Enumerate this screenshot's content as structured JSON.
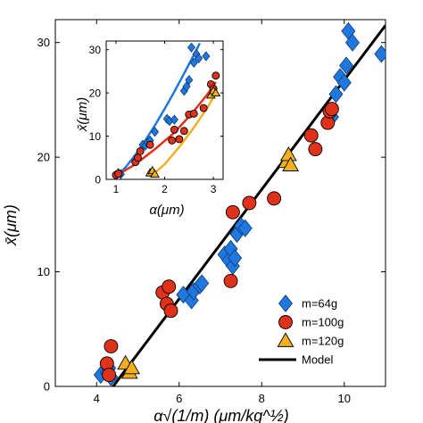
{
  "chart_data": [
    {
      "type": "scatter",
      "xlabel": "α√(1/m)  (μm/kg^½)",
      "ylabel": "x̄(μm)",
      "xlim": [
        3.0,
        11.0
      ],
      "ylim": [
        0,
        32
      ],
      "xticks": [
        "4",
        "6",
        "8",
        "10"
      ],
      "xtick_values": [
        4,
        6,
        8,
        10
      ],
      "yticks": [
        "0",
        "10",
        "20",
        "30"
      ],
      "ytick_values": [
        0,
        10,
        20,
        30
      ],
      "grid": false,
      "legend_position": "bottom-right",
      "series": [
        {
          "name": "m=64g",
          "marker": "diamond",
          "color": "#1f77e0",
          "points": [
            [
              4.1,
              1.0
            ],
            [
              4.3,
              1.6
            ],
            [
              4.25,
              1.2
            ],
            [
              4.35,
              0.8
            ],
            [
              6.1,
              8.0
            ],
            [
              6.3,
              7.5
            ],
            [
              6.35,
              8.3
            ],
            [
              6.5,
              8.8
            ],
            [
              6.55,
              9.0
            ],
            [
              7.1,
              11.5
            ],
            [
              7.2,
              11.0
            ],
            [
              7.25,
              12.0
            ],
            [
              7.3,
              10.5
            ],
            [
              7.35,
              11.2
            ],
            [
              7.4,
              13.3
            ],
            [
              7.5,
              14.0
            ],
            [
              7.6,
              13.8
            ],
            [
              9.7,
              23.5
            ],
            [
              9.8,
              25.5
            ],
            [
              9.9,
              27.0
            ],
            [
              10.0,
              26.5
            ],
            [
              10.05,
              28.0
            ],
            [
              10.1,
              31.0
            ],
            [
              10.2,
              30.0
            ],
            [
              10.9,
              29.0
            ]
          ]
        },
        {
          "name": "m=100g",
          "marker": "circle",
          "color": "#e03218",
          "points": [
            [
              4.25,
              2.0
            ],
            [
              4.35,
              3.5
            ],
            [
              4.3,
              1.0
            ],
            [
              5.6,
              8.2
            ],
            [
              5.7,
              7.2
            ],
            [
              5.75,
              8.7
            ],
            [
              5.8,
              6.6
            ],
            [
              7.3,
              15.2
            ],
            [
              7.25,
              9.2
            ],
            [
              7.7,
              16.0
            ],
            [
              8.3,
              16.4
            ],
            [
              9.2,
              21.9
            ],
            [
              9.3,
              20.7
            ],
            [
              9.6,
              23.0
            ],
            [
              9.65,
              24.0
            ],
            [
              9.7,
              24.2
            ]
          ]
        },
        {
          "name": "m=120g",
          "marker": "triangle",
          "color": "#f2b01e",
          "points": [
            [
              4.7,
              2.0
            ],
            [
              4.8,
              1.2
            ],
            [
              4.85,
              1.6
            ],
            [
              8.6,
              19.6
            ],
            [
              8.65,
              20.2
            ],
            [
              8.7,
              19.3
            ]
          ]
        },
        {
          "name": "Model",
          "marker": "line",
          "color": "#000000",
          "points": [
            [
              4.4,
              0
            ],
            [
              11.0,
              31.5
            ]
          ]
        }
      ]
    },
    {
      "type": "scatter",
      "xlabel": "α(μm)",
      "ylabel": "x̄(μm)",
      "xlim": [
        0.8,
        3.2
      ],
      "ylim": [
        0,
        32
      ],
      "xticks": [
        "1",
        "2",
        "3"
      ],
      "xtick_values": [
        1,
        2,
        3
      ],
      "yticks": [
        "0",
        "10",
        "20",
        "30"
      ],
      "ytick_values": [
        0,
        10,
        20,
        30
      ],
      "series": [
        {
          "name": "m=64g",
          "marker": "diamond",
          "color": "#1f77e0",
          "points": [
            [
              1.0,
              1.0
            ],
            [
              1.05,
              1.5
            ],
            [
              1.1,
              1.2
            ],
            [
              1.55,
              8.0
            ],
            [
              1.6,
              7.8
            ],
            [
              1.65,
              8.5
            ],
            [
              1.7,
              9.0
            ],
            [
              1.8,
              11.0
            ],
            [
              2.05,
              14.0
            ],
            [
              2.1,
              13.5
            ],
            [
              2.2,
              13.8
            ],
            [
              2.4,
              20.5
            ],
            [
              2.45,
              21.5
            ],
            [
              2.5,
              23.0
            ],
            [
              2.6,
              27.0
            ],
            [
              2.55,
              30.5
            ],
            [
              2.65,
              29.0
            ],
            [
              2.7,
              28.0
            ],
            [
              2.85,
              28.5
            ]
          ],
          "curve": [
            [
              1.0,
              0.6
            ],
            [
              1.2,
              2.8
            ],
            [
              1.4,
              5.7
            ],
            [
              1.6,
              9.0
            ],
            [
              1.8,
              12.5
            ],
            [
              2.0,
              16.3
            ],
            [
              2.2,
              20.3
            ],
            [
              2.4,
              24.5
            ],
            [
              2.6,
              28.8
            ],
            [
              2.72,
              31.5
            ]
          ]
        },
        {
          "name": "m=100g",
          "marker": "circle",
          "color": "#e03218",
          "points": [
            [
              1.0,
              1.0
            ],
            [
              1.05,
              1.3
            ],
            [
              1.4,
              4.0
            ],
            [
              1.45,
              5.0
            ],
            [
              1.5,
              6.5
            ],
            [
              1.7,
              8.0
            ],
            [
              2.15,
              9.0
            ],
            [
              2.2,
              11.5
            ],
            [
              2.3,
              9.3
            ],
            [
              2.4,
              11.2
            ],
            [
              2.5,
              15.0
            ],
            [
              2.6,
              15.2
            ],
            [
              2.8,
              16.5
            ],
            [
              2.95,
              22.0
            ],
            [
              3.0,
              21.0
            ],
            [
              3.05,
              24.0
            ]
          ],
          "curve": [
            [
              1.0,
              0.8
            ],
            [
              1.4,
              3.5
            ],
            [
              1.8,
              7.0
            ],
            [
              2.2,
              10.8
            ],
            [
              2.6,
              15.8
            ],
            [
              2.9,
              20.0
            ],
            [
              3.05,
              22.5
            ]
          ]
        },
        {
          "name": "m=120g",
          "marker": "triangle",
          "color": "#f2b01e",
          "points": [
            [
              1.7,
              1.5
            ],
            [
              1.75,
              2.0
            ],
            [
              1.8,
              1.2
            ],
            [
              2.95,
              19.5
            ],
            [
              3.0,
              20.5
            ],
            [
              3.05,
              20.0
            ]
          ],
          "curve": [
            [
              1.7,
              0.5
            ],
            [
              2.0,
              3.5
            ],
            [
              2.3,
              7.5
            ],
            [
              2.6,
              12.0
            ],
            [
              2.9,
              17.0
            ],
            [
              3.05,
              20.0
            ]
          ]
        }
      ]
    }
  ]
}
